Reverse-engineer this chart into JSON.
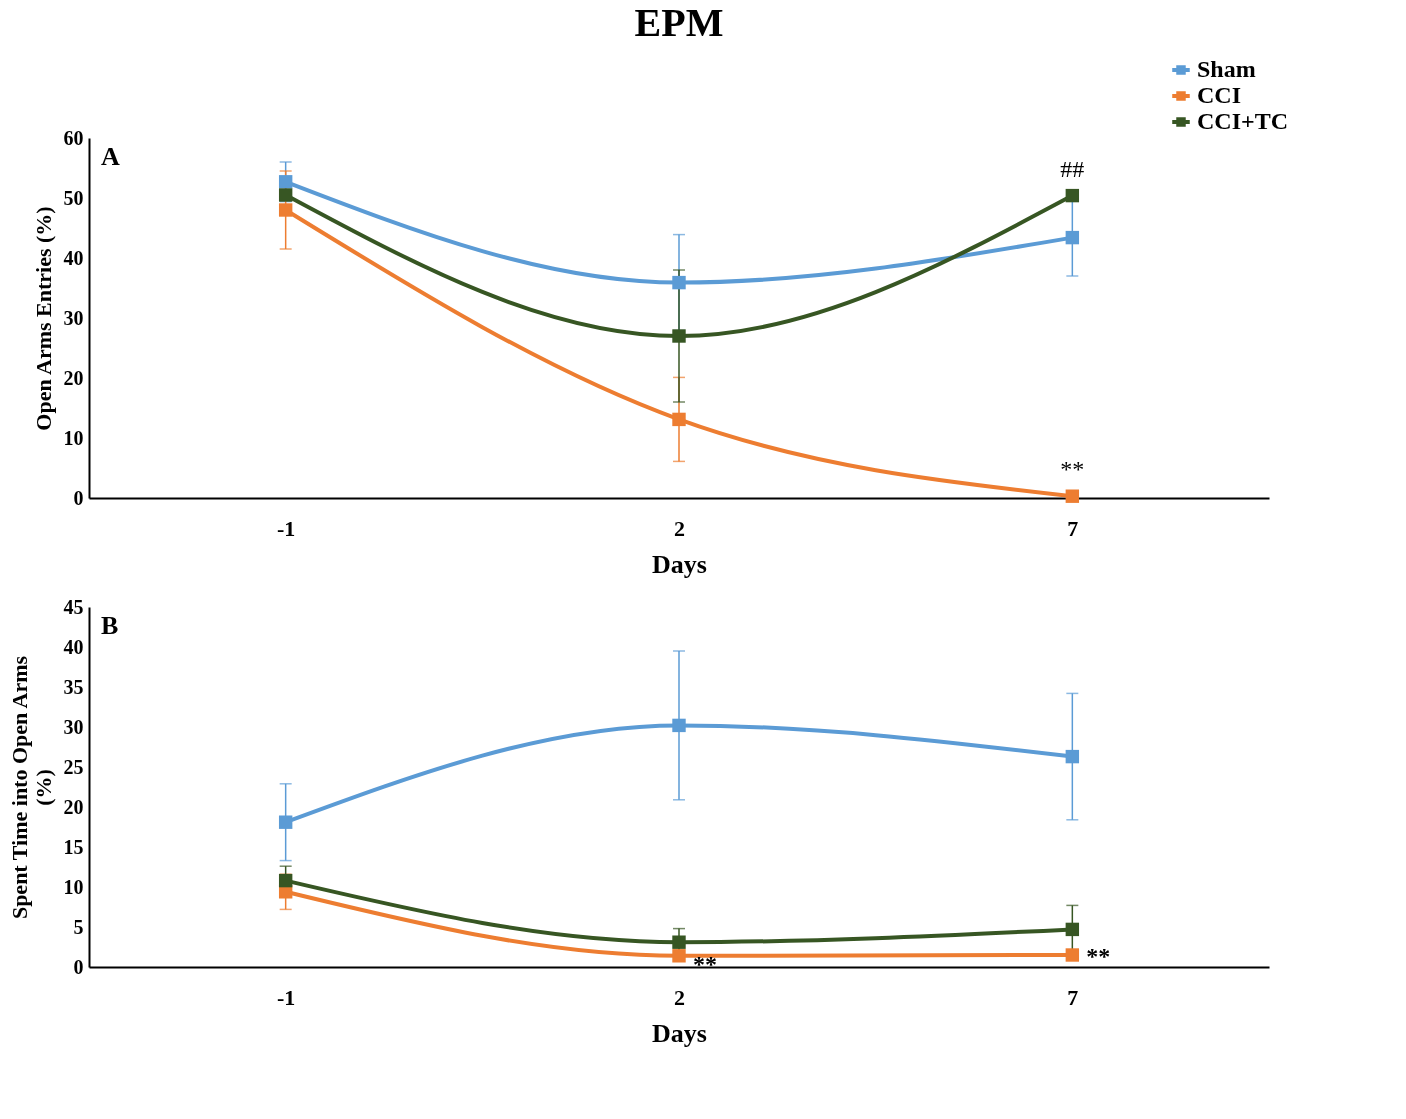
{
  "chart_data": [
    {
      "type": "line",
      "title": "EPM",
      "xlabel": "Days",
      "ylabel": "Open Arms Entries (%)",
      "categories": [
        "-1",
        "2",
        "7"
      ],
      "series": [
        {
          "name": "Sham",
          "color": "#5b9bd5",
          "values": [
            52.7,
            35.9,
            43.4
          ],
          "errors": [
            3.3,
            8,
            6.4
          ]
        },
        {
          "name": "CCI",
          "color": "#ed7d31",
          "values": [
            48,
            13.1,
            0.3
          ],
          "errors": [
            6.5,
            7,
            null
          ]
        },
        {
          "name": "CCI+TC",
          "color": "#375623",
          "values": [
            50.5,
            27,
            50.4
          ],
          "errors": [
            null,
            11,
            null
          ]
        }
      ],
      "ylim": [
        0,
        60
      ],
      "yticks": [
        0,
        10,
        20,
        30,
        40,
        50,
        60
      ],
      "grid": false,
      "legend": "top right",
      "marker": "square",
      "line_style": "solid",
      "annotations": [
        "A",
        {
          "text": "##",
          "x": "7",
          "y": 50.4
        },
        {
          "text": "**",
          "x": "7",
          "y": 0.3
        }
      ]
    },
    {
      "type": "line",
      "xlabel": "Days",
      "ylabel": "Spent Time into Open Arms\n(%)",
      "categories": [
        "-1",
        "2",
        "7"
      ],
      "series": [
        {
          "color": "#5b9bd5",
          "values": [
            18.1,
            30.2,
            26.3
          ],
          "errors": [
            4.8,
            9.3,
            7.9
          ]
        },
        {
          "color": "#ed7d31",
          "values": [
            9.4,
            1.4,
            1.5
          ],
          "errors": [
            2.2,
            null,
            null
          ]
        },
        {
          "color": "#375623",
          "values": [
            10.8,
            3.1,
            4.7
          ],
          "errors": [
            1.8,
            1.7,
            3
          ]
        }
      ],
      "ylim": [
        0,
        45
      ],
      "yticks": [
        0,
        5,
        10,
        15,
        20,
        25,
        30,
        35,
        40,
        45
      ],
      "grid": false,
      "legend": false,
      "marker": "square",
      "line_style": "solid",
      "annotations": [
        "B",
        {
          "text": "**",
          "x": "2",
          "y": 0.8
        },
        {
          "text": "**",
          "x": "7",
          "y": 1.8
        }
      ]
    }
  ]
}
